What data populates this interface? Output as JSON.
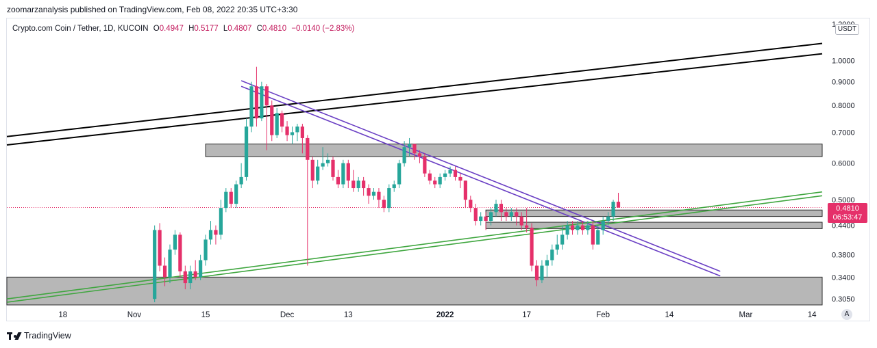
{
  "header": {
    "publish_text": "zoomarzanalysis published on TradingView.com, Feb 08, 2022 20:35 UTC+3:30"
  },
  "legend": {
    "symbol": "Crypto.com Coin / Tether, 1D, KUCOIN",
    "open_label": "O",
    "open": "0.4947",
    "high_label": "H",
    "high": "0.5177",
    "low_label": "L",
    "low": "0.4807",
    "close_label": "C",
    "close": "0.4810",
    "change": "−0.0140 (−2.83%)"
  },
  "currency": "USDT",
  "auto_label": "A",
  "price_tag": {
    "price": "0.4810",
    "countdown": "06:53:47"
  },
  "brand": "TradingView",
  "colors": {
    "up": "#26a69a",
    "down": "#e5306a",
    "zone": "#b7b7b7",
    "channel_black": "#000000",
    "channel_purple": "#6a3fc4",
    "channel_green": "#3fa63f"
  },
  "chart_data": {
    "type": "candlestick",
    "y_axis": {
      "scale": "log",
      "range": [
        0.296,
        1.23
      ],
      "ticks": [
        "1.2000",
        "1.0000",
        "0.9000",
        "0.8000",
        "0.7000",
        "0.6000",
        "0.5000",
        "0.4400",
        "0.3800",
        "0.3400",
        "0.3050"
      ],
      "tick_values": [
        1.2,
        1.0,
        0.9,
        0.8,
        0.7,
        0.6,
        0.5,
        0.44,
        0.38,
        0.34,
        0.305
      ]
    },
    "x_axis": {
      "labels": [
        "18",
        "Nov",
        "15",
        "Dec",
        "13",
        "2022",
        "17",
        "Feb",
        "14",
        "Mar",
        "14"
      ],
      "label_dates": [
        "2021-10-18",
        "2021-11-01",
        "2021-11-15",
        "2021-12-01",
        "2021-12-13",
        "2022-01-01",
        "2022-01-17",
        "2022-02-01",
        "2022-02-14",
        "2022-03-01",
        "2022-03-14"
      ],
      "range": [
        "2021-10-07",
        "2022-03-16"
      ]
    },
    "current_price": 0.481,
    "candles_start": "2021-11-05",
    "candles": [
      [
        0.305,
        0.43,
        0.3,
        0.44
      ],
      [
        0.43,
        0.36,
        0.35,
        0.445
      ],
      [
        0.36,
        0.34,
        0.325,
        0.375
      ],
      [
        0.34,
        0.39,
        0.33,
        0.4
      ],
      [
        0.39,
        0.42,
        0.38,
        0.43
      ],
      [
        0.42,
        0.35,
        0.34,
        0.425
      ],
      [
        0.35,
        0.33,
        0.32,
        0.36
      ],
      [
        0.33,
        0.35,
        0.32,
        0.36
      ],
      [
        0.35,
        0.34,
        0.335,
        0.37
      ],
      [
        0.34,
        0.37,
        0.335,
        0.38
      ],
      [
        0.37,
        0.41,
        0.36,
        0.42
      ],
      [
        0.41,
        0.43,
        0.4,
        0.45
      ],
      [
        0.43,
        0.42,
        0.4,
        0.44
      ],
      [
        0.42,
        0.48,
        0.41,
        0.5
      ],
      [
        0.48,
        0.52,
        0.47,
        0.53
      ],
      [
        0.52,
        0.49,
        0.48,
        0.53
      ],
      [
        0.49,
        0.54,
        0.48,
        0.55
      ],
      [
        0.54,
        0.56,
        0.53,
        0.6
      ],
      [
        0.56,
        0.72,
        0.55,
        0.75
      ],
      [
        0.72,
        0.88,
        0.7,
        0.9
      ],
      [
        0.88,
        0.75,
        0.72,
        0.97
      ],
      [
        0.75,
        0.88,
        0.74,
        0.9
      ],
      [
        0.88,
        0.8,
        0.64,
        0.89
      ],
      [
        0.8,
        0.69,
        0.67,
        0.82
      ],
      [
        0.69,
        0.77,
        0.68,
        0.79
      ],
      [
        0.77,
        0.72,
        0.7,
        0.78
      ],
      [
        0.72,
        0.69,
        0.67,
        0.74
      ],
      [
        0.69,
        0.7,
        0.66,
        0.72
      ],
      [
        0.7,
        0.72,
        0.67,
        0.73
      ],
      [
        0.72,
        0.68,
        0.63,
        0.73
      ],
      [
        0.68,
        0.61,
        0.36,
        0.69
      ],
      [
        0.61,
        0.55,
        0.53,
        0.62
      ],
      [
        0.55,
        0.59,
        0.54,
        0.61
      ],
      [
        0.59,
        0.6,
        0.58,
        0.65
      ],
      [
        0.6,
        0.61,
        0.59,
        0.63
      ],
      [
        0.61,
        0.56,
        0.55,
        0.62
      ],
      [
        0.56,
        0.54,
        0.53,
        0.58
      ],
      [
        0.54,
        0.6,
        0.53,
        0.61
      ],
      [
        0.6,
        0.55,
        0.53,
        0.61
      ],
      [
        0.55,
        0.53,
        0.52,
        0.58
      ],
      [
        0.53,
        0.55,
        0.52,
        0.56
      ],
      [
        0.55,
        0.53,
        0.51,
        0.56
      ],
      [
        0.53,
        0.51,
        0.49,
        0.54
      ],
      [
        0.51,
        0.52,
        0.5,
        0.53
      ],
      [
        0.52,
        0.5,
        0.48,
        0.53
      ],
      [
        0.5,
        0.48,
        0.47,
        0.51
      ],
      [
        0.48,
        0.53,
        0.47,
        0.54
      ],
      [
        0.53,
        0.54,
        0.52,
        0.55
      ],
      [
        0.54,
        0.6,
        0.53,
        0.61
      ],
      [
        0.6,
        0.65,
        0.59,
        0.67
      ],
      [
        0.65,
        0.66,
        0.62,
        0.68
      ],
      [
        0.66,
        0.63,
        0.61,
        0.66
      ],
      [
        0.63,
        0.62,
        0.6,
        0.64
      ],
      [
        0.62,
        0.57,
        0.56,
        0.63
      ],
      [
        0.57,
        0.55,
        0.54,
        0.58
      ],
      [
        0.55,
        0.54,
        0.53,
        0.56
      ],
      [
        0.54,
        0.56,
        0.53,
        0.57
      ],
      [
        0.56,
        0.57,
        0.55,
        0.58
      ],
      [
        0.57,
        0.58,
        0.56,
        0.59
      ],
      [
        0.58,
        0.56,
        0.55,
        0.59
      ],
      [
        0.56,
        0.55,
        0.53,
        0.57
      ],
      [
        0.55,
        0.5,
        0.48,
        0.55
      ],
      [
        0.5,
        0.48,
        0.47,
        0.51
      ],
      [
        0.48,
        0.45,
        0.44,
        0.49
      ],
      [
        0.45,
        0.46,
        0.44,
        0.47
      ],
      [
        0.46,
        0.45,
        0.43,
        0.47
      ],
      [
        0.45,
        0.47,
        0.44,
        0.48
      ],
      [
        0.47,
        0.49,
        0.46,
        0.5
      ],
      [
        0.49,
        0.47,
        0.45,
        0.5
      ],
      [
        0.47,
        0.46,
        0.45,
        0.48
      ],
      [
        0.46,
        0.47,
        0.45,
        0.48
      ],
      [
        0.47,
        0.46,
        0.44,
        0.48
      ],
      [
        0.46,
        0.44,
        0.43,
        0.47
      ],
      [
        0.44,
        0.435,
        0.425,
        0.48
      ],
      [
        0.435,
        0.36,
        0.35,
        0.445
      ],
      [
        0.36,
        0.335,
        0.325,
        0.37
      ],
      [
        0.335,
        0.36,
        0.33,
        0.37
      ],
      [
        0.36,
        0.37,
        0.34,
        0.38
      ],
      [
        0.37,
        0.39,
        0.36,
        0.4
      ],
      [
        0.39,
        0.4,
        0.38,
        0.42
      ],
      [
        0.4,
        0.42,
        0.39,
        0.44
      ],
      [
        0.42,
        0.44,
        0.41,
        0.45
      ],
      [
        0.44,
        0.43,
        0.42,
        0.45
      ],
      [
        0.43,
        0.44,
        0.42,
        0.45
      ],
      [
        0.44,
        0.43,
        0.42,
        0.45
      ],
      [
        0.43,
        0.44,
        0.42,
        0.45
      ],
      [
        0.44,
        0.4,
        0.39,
        0.45
      ],
      [
        0.4,
        0.43,
        0.4,
        0.44
      ],
      [
        0.43,
        0.45,
        0.42,
        0.46
      ],
      [
        0.45,
        0.46,
        0.44,
        0.47
      ],
      [
        0.46,
        0.495,
        0.45,
        0.5
      ],
      [
        0.495,
        0.481,
        0.4807,
        0.5177
      ]
    ],
    "zones": [
      {
        "from_date": "2021-11-15",
        "to_date": "2022-03-16",
        "low": 0.62,
        "high": 0.66
      },
      {
        "from_date": "2022-01-09",
        "to_date": "2022-03-16",
        "low": 0.46,
        "high": 0.475
      },
      {
        "from_date": "2022-01-09",
        "to_date": "2022-03-16",
        "low": 0.433,
        "high": 0.447
      },
      {
        "from_date": "2021-10-07",
        "to_date": "2022-03-16",
        "low": 0.296,
        "high": 0.34
      }
    ],
    "trendlines": [
      {
        "color": "channel_black",
        "from": [
          "2021-10-07",
          0.685
        ],
        "to": [
          "2022-03-16",
          1.09
        ]
      },
      {
        "color": "channel_black",
        "from": [
          "2021-10-07",
          0.657
        ],
        "to": [
          "2022-03-16",
          1.035
        ]
      },
      {
        "color": "channel_purple",
        "from": [
          "2021-11-22",
          0.905
        ],
        "to": [
          "2022-02-24",
          0.35
        ]
      },
      {
        "color": "channel_purple",
        "from": [
          "2021-11-22",
          0.88
        ],
        "to": [
          "2022-02-24",
          0.342
        ]
      },
      {
        "color": "channel_green",
        "from": [
          "2021-10-07",
          0.3
        ],
        "to": [
          "2022-03-16",
          0.51
        ]
      },
      {
        "color": "channel_green",
        "from": [
          "2021-10-07",
          0.305
        ],
        "to": [
          "2022-03-16",
          0.52
        ]
      }
    ]
  }
}
